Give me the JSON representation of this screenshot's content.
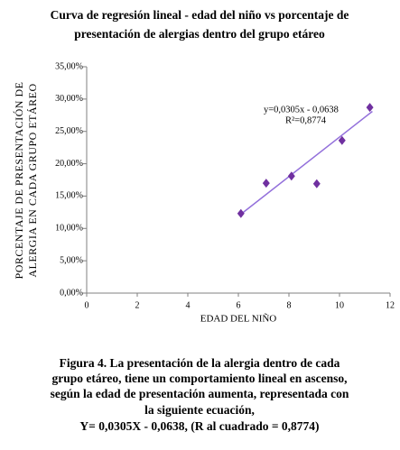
{
  "chart_data": {
    "type": "scatter",
    "title": [
      "Curva de regresión lineal - edad del niño vs porcentaje de",
      "presentación de alergias dentro del grupo etáreo"
    ],
    "x_label": "EDAD  DEL  NIÑO",
    "y_label": [
      "PORCENTAJE DE PRESENTACIÓN DE",
      "ALERGIA EN CADA GRUPO ETÁREO"
    ],
    "x": [
      6.1,
      7.1,
      8.1,
      9.1,
      10.1,
      11.2
    ],
    "values": [
      12.3,
      17.0,
      18.1,
      16.9,
      23.6,
      28.7
    ],
    "color": "#7030a0",
    "trendline": {
      "color": "#9370db",
      "x": [
        6.1,
        11.3
      ],
      "y": [
        12.2,
        28.1
      ],
      "equation": "y=0,0305x - 0,0638",
      "r2": "R²=0,8774"
    },
    "xlim": [
      0,
      12
    ],
    "xticks": [
      0,
      2,
      4,
      6,
      8,
      10,
      12
    ],
    "ylim": [
      0,
      35
    ],
    "yticks": [
      {
        "value": 0,
        "label": "0,00%"
      },
      {
        "value": 5,
        "label": "5,00%"
      },
      {
        "value": 10,
        "label": "10,00%"
      },
      {
        "value": 15,
        "label": "15,00%"
      },
      {
        "value": 20,
        "label": "20,00%"
      },
      {
        "value": 25,
        "label": "25,00%"
      },
      {
        "value": 30,
        "label": "30,00%"
      },
      {
        "value": 35,
        "label": "35,00%"
      }
    ],
    "caption": [
      "Figura 4. La presentación de la alergia dentro de cada",
      "grupo etáreo, tiene un comportamiento lineal en ascenso,",
      "según la edad de presentación aumenta, representada con",
      "la siguiente ecuación,",
      "Y= 0,0305X - 0,0638, (R al cuadrado = 0,8774)"
    ]
  }
}
